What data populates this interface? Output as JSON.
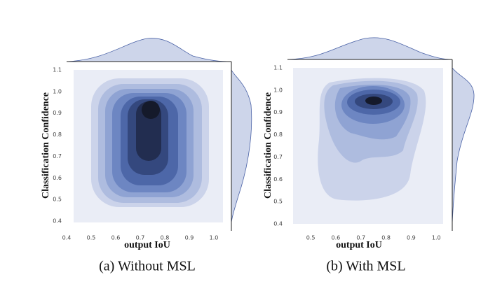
{
  "chart_data": [
    {
      "type": "kde",
      "caption": "(a) Without MSL",
      "xlabel": "output IoU",
      "ylabel": "Classification Confidence",
      "xlim": [
        0.4,
        1.04
      ],
      "ylim": [
        0.4,
        1.1
      ],
      "xticks": [
        0.4,
        0.5,
        0.6,
        0.7,
        0.8,
        0.9,
        {
          "value": 1,
          "label": "1.0"
        }
      ],
      "yticks": [
        0.4,
        0.5,
        0.6,
        0.7,
        0.8,
        0.9,
        {
          "value": 1,
          "label": "1.0"
        },
        1.1
      ]
    },
    {
      "type": "kde",
      "caption": "(b) With MSL",
      "xlabel": "output IoU",
      "ylabel": "Classification Confidence",
      "xlim": [
        0.43,
        1.03
      ],
      "ylim": [
        0.4,
        1.1
      ],
      "xticks": [
        0.5,
        0.6,
        0.7,
        0.8,
        0.9,
        {
          "value": 1,
          "label": "1.0"
        }
      ],
      "yticks": [
        0.4,
        0.5,
        0.6,
        0.7,
        0.8,
        0.9,
        {
          "value": 1,
          "label": "1.0"
        },
        1.1
      ]
    }
  ]
}
